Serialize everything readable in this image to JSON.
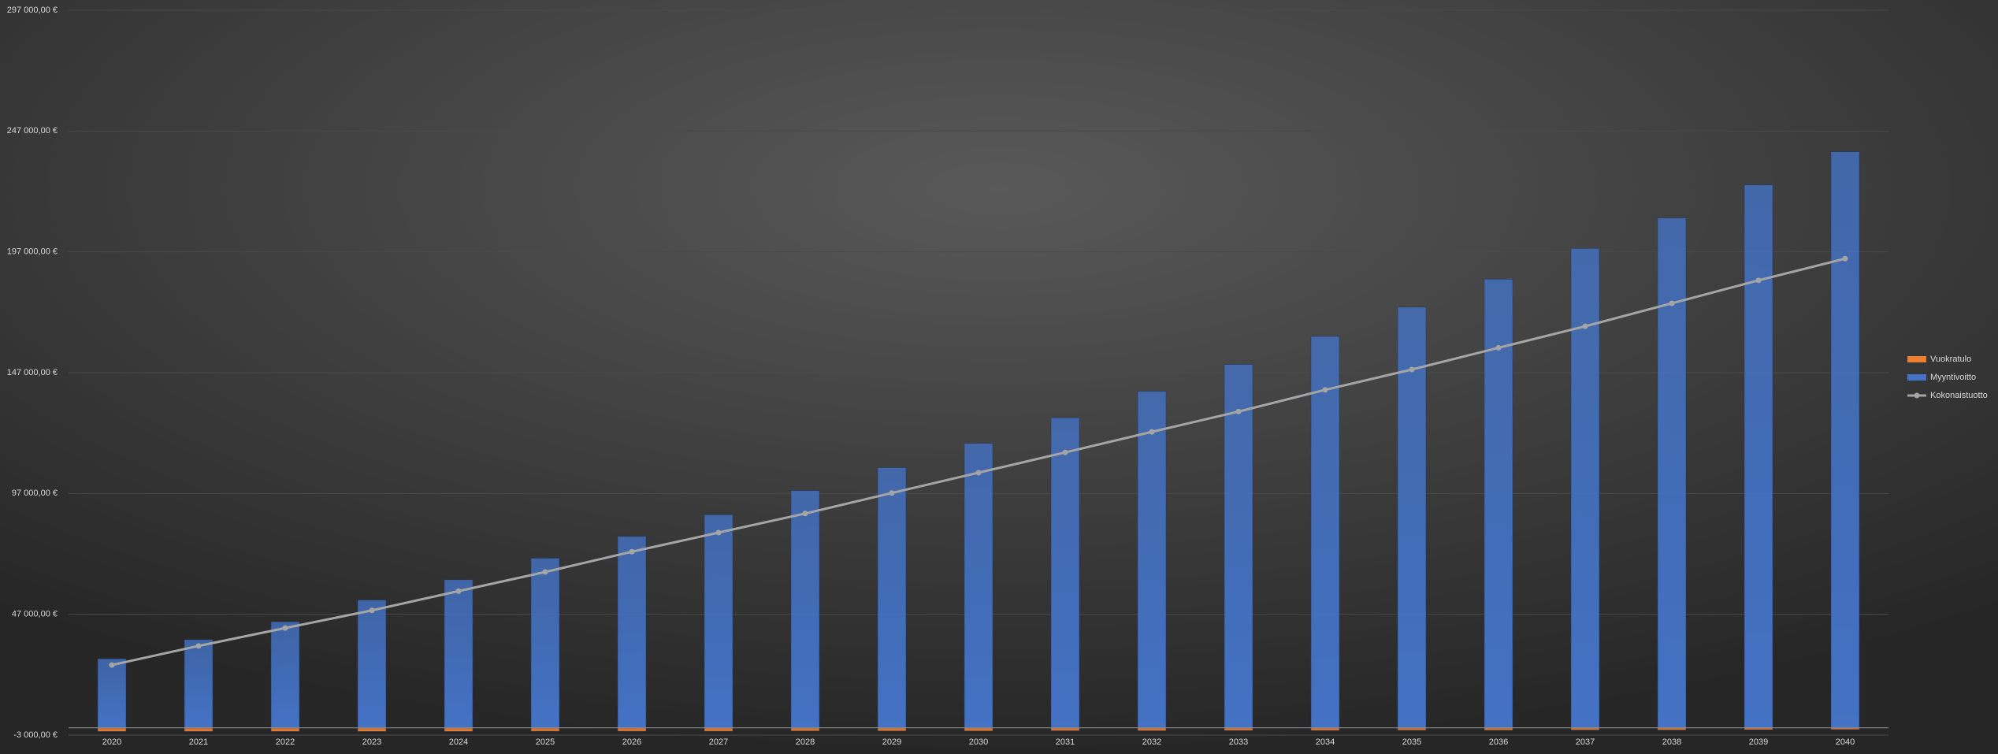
{
  "chart_data": {
    "type": "bar",
    "categories": [
      "2020",
      "2021",
      "2022",
      "2023",
      "2024",
      "2025",
      "2026",
      "2027",
      "2028",
      "2029",
      "2030",
      "2031",
      "2032",
      "2033",
      "2034",
      "2035",
      "2036",
      "2037",
      "2038",
      "2039",
      "2040"
    ],
    "series": [
      {
        "name": "Vuokratulo",
        "color": "#ed7d31",
        "type": "bar",
        "values": [
          -1500,
          -1500,
          -1500,
          -1500,
          -1500,
          -1400,
          -1400,
          -1400,
          -1300,
          -1300,
          -1300,
          -1200,
          -1200,
          -1100,
          -1100,
          -1000,
          -1000,
          -900,
          -900,
          -800,
          -700
        ]
      },
      {
        "name": "Myyntivoitto",
        "color": "#4472c4",
        "type": "bar",
        "values": [
          28600,
          36500,
          43900,
          52900,
          61300,
          70200,
          79200,
          88200,
          98200,
          107700,
          117700,
          128300,
          139300,
          150400,
          162000,
          174100,
          185700,
          198400,
          211000,
          224700,
          238400
        ]
      },
      {
        "name": "Kokonaistuotto",
        "color": "#a5a5a5",
        "type": "line",
        "values": [
          26000,
          33900,
          41300,
          48600,
          56600,
          64500,
          72900,
          80800,
          88700,
          97200,
          105600,
          114000,
          122500,
          130900,
          139900,
          148300,
          157300,
          166200,
          175700,
          185200,
          194200
        ]
      }
    ],
    "ylim": [
      -3000,
      297000
    ],
    "yticks": [
      {
        "value": -3000,
        "label": "-3 000,00 €"
      },
      {
        "value": 47000,
        "label": "47 000,00 €"
      },
      {
        "value": 97000,
        "label": "97 000,00 €"
      },
      {
        "value": 147000,
        "label": "147 000,00 €"
      },
      {
        "value": 197000,
        "label": "197 000,00 €"
      },
      {
        "value": 247000,
        "label": "247 000,00 €"
      },
      {
        "value": 297000,
        "label": "297 000,00 €"
      }
    ],
    "grid": true,
    "legend": "right"
  }
}
